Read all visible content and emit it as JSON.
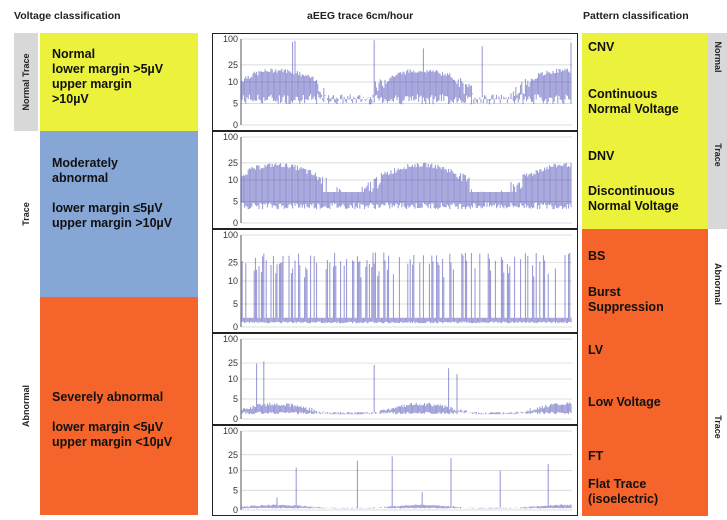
{
  "headers": {
    "voltage": "Voltage classification",
    "trace": "aEEG trace 6cm/hour",
    "pattern": "Pattern classification"
  },
  "left_side_labels": [
    "Normal Trace",
    "Trace",
    "Abnormal"
  ],
  "right_side_labels": [
    "Normal",
    "Trace",
    "Abnormal",
    "Trace"
  ],
  "voltage_classes": [
    {
      "text": "Normal\nlower margin >5µV\nupper margin\n>10µV",
      "color": "#ecf23c"
    },
    {
      "text": "Moderately\nabnormal\n\nlower margin ≤5µV\nupper margin >10µV",
      "color": "#86a6d6"
    },
    {
      "text": "Severely abnormal\n\nlower margin <5µV\nupper margin <10µV",
      "color": "#f5642a"
    }
  ],
  "y_ticks": [
    "100",
    "25",
    "10",
    "5",
    "0"
  ],
  "patterns": [
    {
      "code": "CNV",
      "desc": "Continuous\nNormal Voltage",
      "color": "#ecf23c"
    },
    {
      "code": "DNV",
      "desc": "Discontinuous\nNormal Voltage",
      "color": "#ecf23c"
    },
    {
      "code": "BS",
      "desc": "Burst\nSuppression",
      "color": "#f5642a"
    },
    {
      "code": "LV",
      "desc": "Low Voltage",
      "color": "#f5642a"
    },
    {
      "code": "FT",
      "desc": "Flat Trace\n(isoelectric)",
      "color": "#f5642a"
    }
  ],
  "traces": [
    {
      "pattern": "CNV",
      "lower_uV": 6,
      "upper_uV": 15,
      "note": "continuous band, occasional spikes"
    },
    {
      "pattern": "DNV",
      "lower_uV": 4,
      "upper_uV": 18,
      "note": "wide discontinuous band"
    },
    {
      "pattern": "BS",
      "lower_uV": 1,
      "upper_uV": 30,
      "note": "bursts over suppressed baseline"
    },
    {
      "pattern": "LV",
      "lower_uV": 1.5,
      "upper_uV": 3,
      "note": "low band with sparse spikes"
    },
    {
      "pattern": "FT",
      "lower_uV": 0.5,
      "upper_uV": 1,
      "note": "flat near zero"
    }
  ]
}
